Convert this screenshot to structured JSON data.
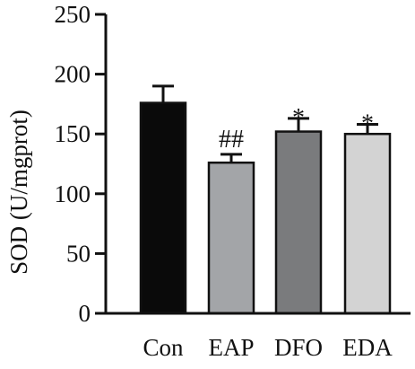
{
  "chart_data": {
    "type": "bar",
    "title": "",
    "xlabel": "",
    "ylabel": "SOD (U/mgprot)",
    "ylim": [
      0,
      250
    ],
    "yticks": [
      0,
      50,
      100,
      150,
      200,
      250
    ],
    "categories": [
      "Con",
      "EAP",
      "DFO",
      "EDA"
    ],
    "values": [
      176,
      126,
      152,
      150
    ],
    "errors": [
      14,
      7,
      11,
      8
    ],
    "significance": [
      "",
      "##",
      "*",
      "*"
    ],
    "colors": [
      "#0a0a0a",
      "#a3a5a8",
      "#7a7b7d",
      "#d3d3d3"
    ],
    "bar_outline": "#111111",
    "grid": false,
    "legend": "none"
  }
}
